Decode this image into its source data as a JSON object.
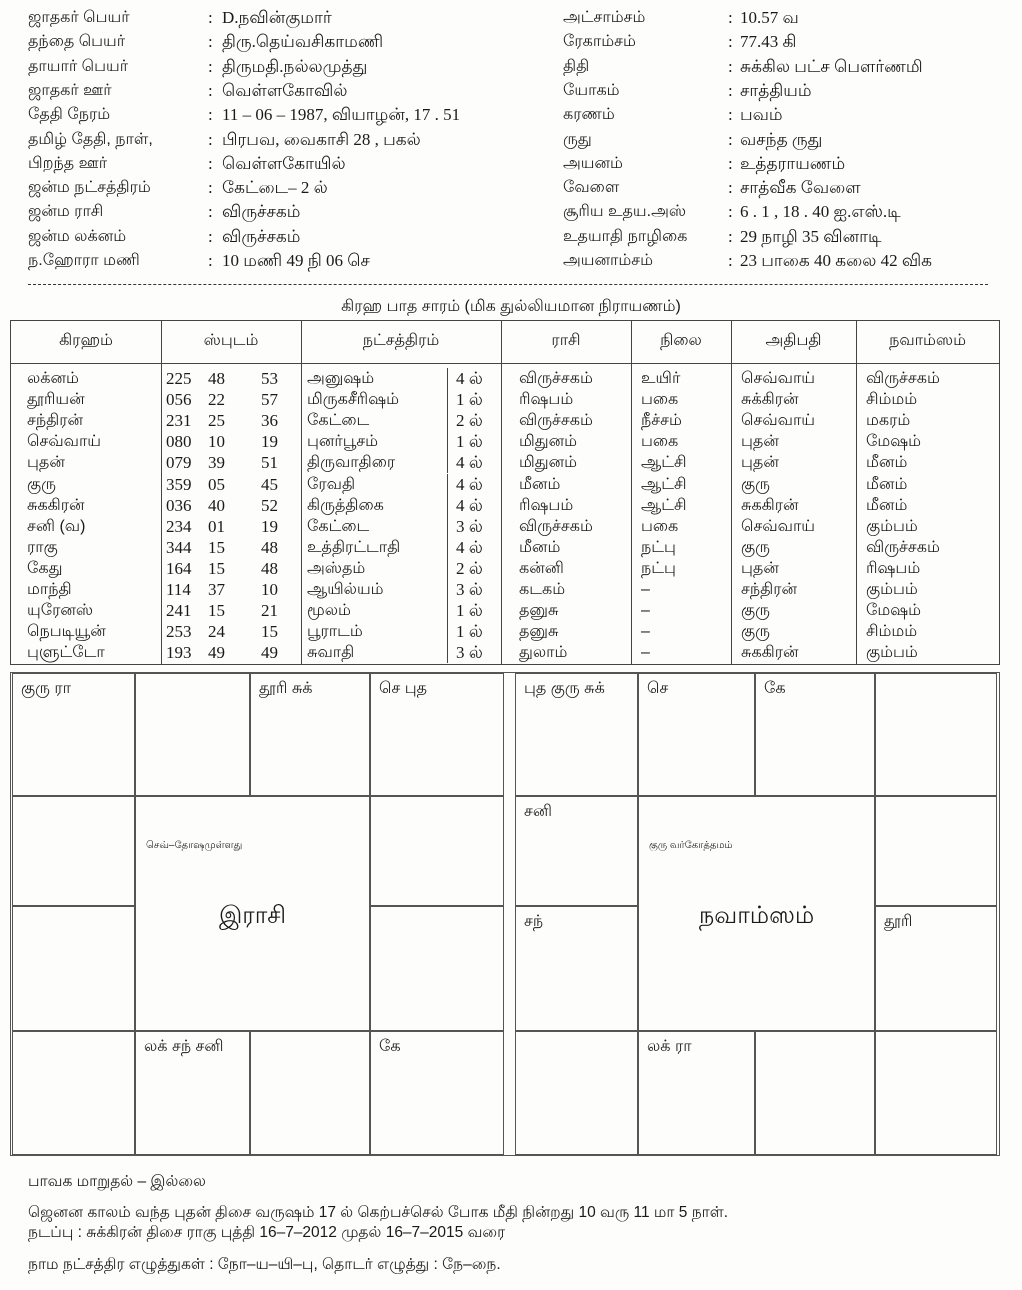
{
  "details_left": [
    {
      "label": "ஜாதகர் பெயர்",
      "value": "D.நவின்குமார்"
    },
    {
      "label": "தந்தை பெயர்",
      "value": "திரு.தெய்வசிகாமணி"
    },
    {
      "label": "தாயார் பெயர்",
      "value": "திருமதி.நல்லமுத்து"
    },
    {
      "label": "ஜாதகர் ஊர்",
      "value": "வெள்ளகோவில்"
    },
    {
      "label": "தேதி நேரம்",
      "value": "11 – 06 – 1987,  வியாழன், 17 . 51"
    },
    {
      "label": "தமிழ் தேதி, நாள்,",
      "value": "பிரபவ, வைகாசி  28 , பகல்"
    },
    {
      "label": "பிறந்த ஊர்",
      "value": "வெள்ளகோயில்"
    },
    {
      "label": "ஜன்ம நட்சத்திரம்",
      "value": "கேட்டை– 2 ல்"
    },
    {
      "label": "ஜன்ம ராசி",
      "value": "விருச்சகம்"
    },
    {
      "label": "ஜன்ம லக்னம்",
      "value": "விருச்சகம்"
    },
    {
      "label": "ந.ஹோரா மணி",
      "value": "10 மணி  49 நி  06 செ"
    }
  ],
  "details_right": [
    {
      "label": "அட்சாம்சம்",
      "value": "10.57 வ"
    },
    {
      "label": "ரேகாம்சம்",
      "value": "77.43 கி"
    },
    {
      "label": "திதி",
      "value": "சுக்கில பட்ச பௌர்ணமி"
    },
    {
      "label": "யோகம்",
      "value": "சாத்தியம்"
    },
    {
      "label": "கரணம்",
      "value": "பவம்"
    },
    {
      "label": "ருது",
      "value": "வசந்த ருது"
    },
    {
      "label": "அயனம்",
      "value": "உத்தராயணம்"
    },
    {
      "label": "வேளை",
      "value": "சாத்வீக வேளை"
    },
    {
      "label": "சூரிய உதய.அஸ்",
      "value": " 6 . 1 ,     18 . 40  ஐ.எஸ்.டி"
    },
    {
      "label": "உதயாதி நாழிகை",
      "value": " 29  நாழி   35  வினாடி"
    },
    {
      "label": "அயனாம்சம்",
      "value": "23 பாகை  40 கலை  42 விக"
    }
  ],
  "separator": ":",
  "table": {
    "title": "கிரஹ பாத சாரம் (மிக துல்லியமான நிராயணம்)",
    "headers": [
      "கிரஹம்",
      "ஸ்புடம்",
      "நட்சத்திரம்",
      "ராசி",
      "நிலை",
      "அதிபதி",
      "நவாம்ஸம்"
    ],
    "rows": [
      [
        "லக்னம்",
        "225",
        "48",
        "53",
        "அனுஷம்",
        "4 ல்",
        "விருச்சகம்",
        "உயிர்",
        "செவ்வாய்",
        "விருச்சகம்"
      ],
      [
        "தூரியன்",
        "056",
        "22",
        "57",
        "மிருகசீரிஷம்",
        "1 ல்",
        "ரிஷபம்",
        "பகை",
        "சுக்கிரன்",
        "சிம்மம்"
      ],
      [
        "சந்திரன்",
        "231",
        "25",
        "36",
        "கேட்டை",
        "2 ல்",
        "விருச்சகம்",
        "நீச்சம்",
        "செவ்வாய்",
        "மகரம்"
      ],
      [
        "செவ்வாய்",
        "080",
        "10",
        "19",
        "புனர்பூசம்",
        "1 ல்",
        "மிதுனம்",
        "பகை",
        "புதன்",
        "மேஷம்"
      ],
      [
        "புதன்",
        "079",
        "39",
        "51",
        "திருவாதிரை",
        "4 ல்",
        "மிதுனம்",
        "ஆட்சி",
        "புதன்",
        "மீனம்"
      ],
      [
        "குரு",
        "359",
        "05",
        "45",
        "ரேவதி",
        "4 ல்",
        "மீனம்",
        "ஆட்சி",
        "குரு",
        "மீனம்"
      ],
      [
        "சுககிரன்",
        "036",
        "40",
        "52",
        "கிருத்திகை",
        "4 ல்",
        "ரிஷபம்",
        "ஆட்சி",
        "சுககிரன்",
        "மீனம்"
      ],
      [
        "சனி (வ)",
        "234",
        "01",
        "19",
        "கேட்டை",
        "3 ல்",
        "விருச்சகம்",
        "பகை",
        "செவ்வாய்",
        "கும்பம்"
      ],
      [
        "ராகு",
        "344",
        "15",
        "48",
        "உத்திரட்டாதி",
        "4 ல்",
        "மீனம்",
        "நட்பு",
        "குரு",
        "விருச்சகம்"
      ],
      [
        "கேது",
        "164",
        "15",
        "48",
        "அஸ்தம்",
        "2 ல்",
        "கன்னி",
        "நட்பு",
        "புதன்",
        "ரிஷபம்"
      ],
      [
        "மாந்தி",
        "114",
        "37",
        "10",
        "ஆயில்யம்",
        "3 ல்",
        "கடகம்",
        "–",
        "சந்திரன்",
        "கும்பம்"
      ],
      [
        "யுரேனஸ்",
        "241",
        "15",
        "21",
        "மூலம்",
        "1 ல்",
        "தனுசு",
        "–",
        "குரு",
        "மேஷம்"
      ],
      [
        "நெபடியூன்",
        "253",
        "24",
        "15",
        "பூராடம்",
        "1 ல்",
        "தனுசு",
        "–",
        "குரு",
        "சிம்மம்"
      ],
      [
        "புளுட்டோ",
        "193",
        "49",
        "49",
        "சுவாதி",
        "3 ல்",
        "துலாம்",
        "–",
        "சுககிரன்",
        "கும்பம்"
      ]
    ]
  },
  "rasi_chart": {
    "title": "இராசி",
    "note": "செவ்–தோஷமுள்ளது",
    "houses": {
      "top": [
        "குரு ரா",
        "",
        "தூரி சுக்",
        "செ புத"
      ],
      "right": [
        "",
        ""
      ],
      "bottom": [
        "",
        "லக் சந் சனி",
        "",
        "கே"
      ],
      "left": [
        "",
        ""
      ]
    }
  },
  "navamsa_chart": {
    "title": "நவாம்ஸம்",
    "note": "குரு வர்கோத்தமம்",
    "houses": {
      "top": [
        "புத குரு சுக்",
        "செ",
        "கே",
        ""
      ],
      "right": [
        "",
        "தூரி"
      ],
      "bottom": [
        "",
        "லக் ரா",
        "",
        ""
      ],
      "left": [
        "சனி",
        "சந்"
      ]
    }
  },
  "footer": {
    "line1": "பாவக மாறுதல்  –  இல்லை",
    "line2": "ஜெனன காலம் வந்த புதன் திசை வருஷம் 17 ல் கெற்பச்செல் போக மீதி நின்றது  10  வரு  11  மா  5  நாள்.",
    "line3": "நடப்பு : சுக்கிரன்  திசை   ராகு  புத்தி     16–7–2012 முதல்  16–7–2015 வரை",
    "line4": "நாம நட்சத்திர எழுத்துகள் : நோ–ய–யி–பு, தொடர் எழுத்து : நே–நை."
  }
}
